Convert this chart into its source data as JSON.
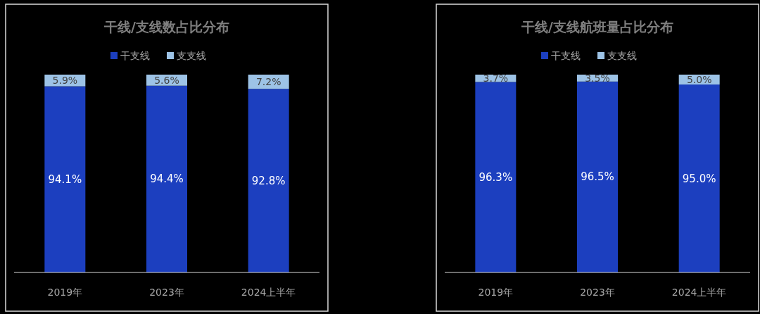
{
  "chart_data": [
    {
      "type": "bar",
      "title": "干线/支线数占比分布",
      "categories": [
        "2019年",
        "2023年",
        "2024上半年"
      ],
      "stacked": true,
      "data_labels": true,
      "legend": "top",
      "series": [
        {
          "name": "干支线",
          "color": "#1c3fbf",
          "values": [
            94.1,
            94.4,
            92.8
          ],
          "value_labels": [
            "94.1%",
            "94.4%",
            "92.8%"
          ]
        },
        {
          "name": "支支线",
          "color": "#9dc3e6",
          "values": [
            5.9,
            5.6,
            7.2
          ],
          "value_labels": [
            "5.9%",
            "5.6%",
            "7.2%"
          ]
        }
      ]
    },
    {
      "type": "bar",
      "title": "干线/支线航班量占比分布",
      "categories": [
        "2019年",
        "2023年",
        "2024上半年"
      ],
      "stacked": true,
      "data_labels": true,
      "legend": "top",
      "series": [
        {
          "name": "干支线",
          "color": "#1c3fbf",
          "values": [
            96.3,
            96.5,
            95.0
          ],
          "value_labels": [
            "96.3%",
            "96.5%",
            "95.0%"
          ]
        },
        {
          "name": "支支线",
          "color": "#9dc3e6",
          "values": [
            3.7,
            3.5,
            5.0
          ],
          "value_labels": [
            "3.7%",
            "3.5%",
            "5.0%"
          ]
        }
      ]
    }
  ]
}
